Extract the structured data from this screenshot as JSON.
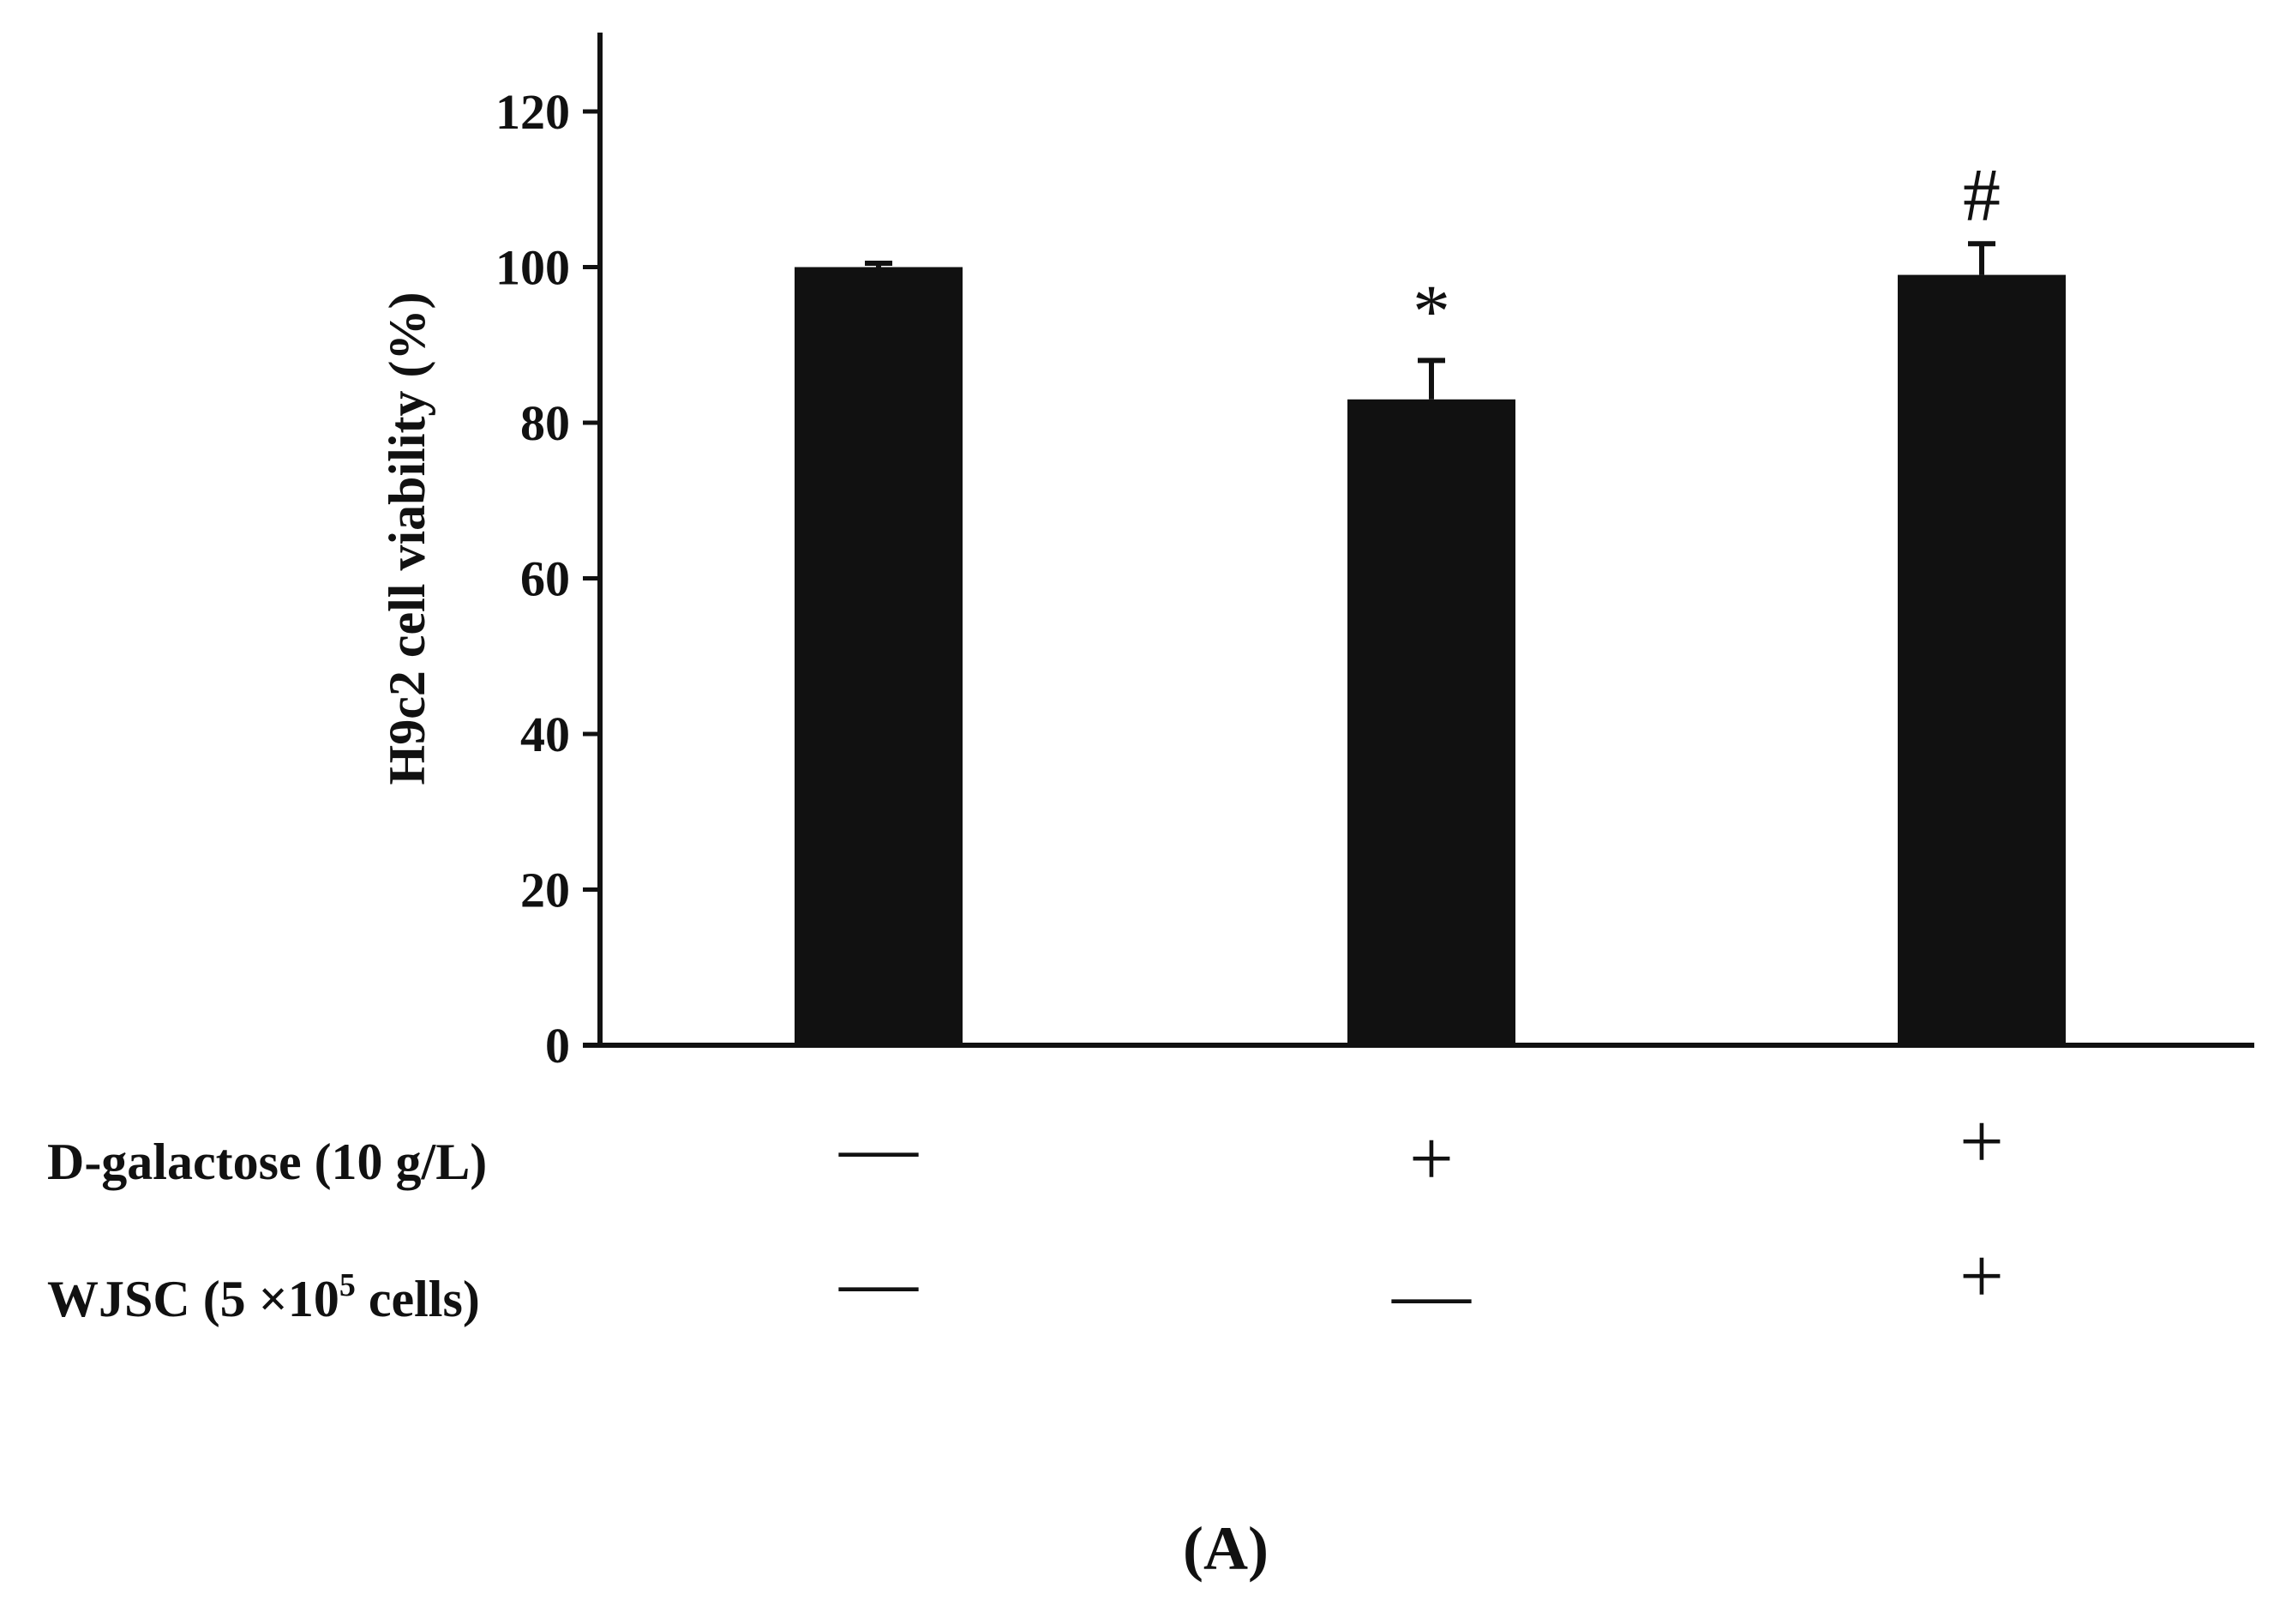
{
  "chart_data": {
    "type": "bar",
    "categories": [
      "1",
      "2",
      "3"
    ],
    "values": [
      100,
      83,
      99
    ],
    "errors": [
      0.5,
      5,
      4
    ],
    "significance": [
      "",
      "*",
      "#"
    ],
    "ylabel": "H9c2 cell viability (%)",
    "ylim": [
      0,
      130
    ],
    "yticks": [
      0,
      20,
      40,
      60,
      80,
      100,
      120
    ],
    "grid": false,
    "bar_color": "#111111",
    "treatments": [
      {
        "label_main": "D-galactose (10 g/L)",
        "label_sup": "",
        "label_tail": "",
        "signs": [
          "—",
          "+",
          "+"
        ]
      },
      {
        "label_main": "WJSC (5 ×10",
        "label_sup": "5",
        "label_tail": " cells)",
        "signs": [
          "—",
          "—",
          "+"
        ]
      }
    ],
    "panel_label": "(A)"
  }
}
